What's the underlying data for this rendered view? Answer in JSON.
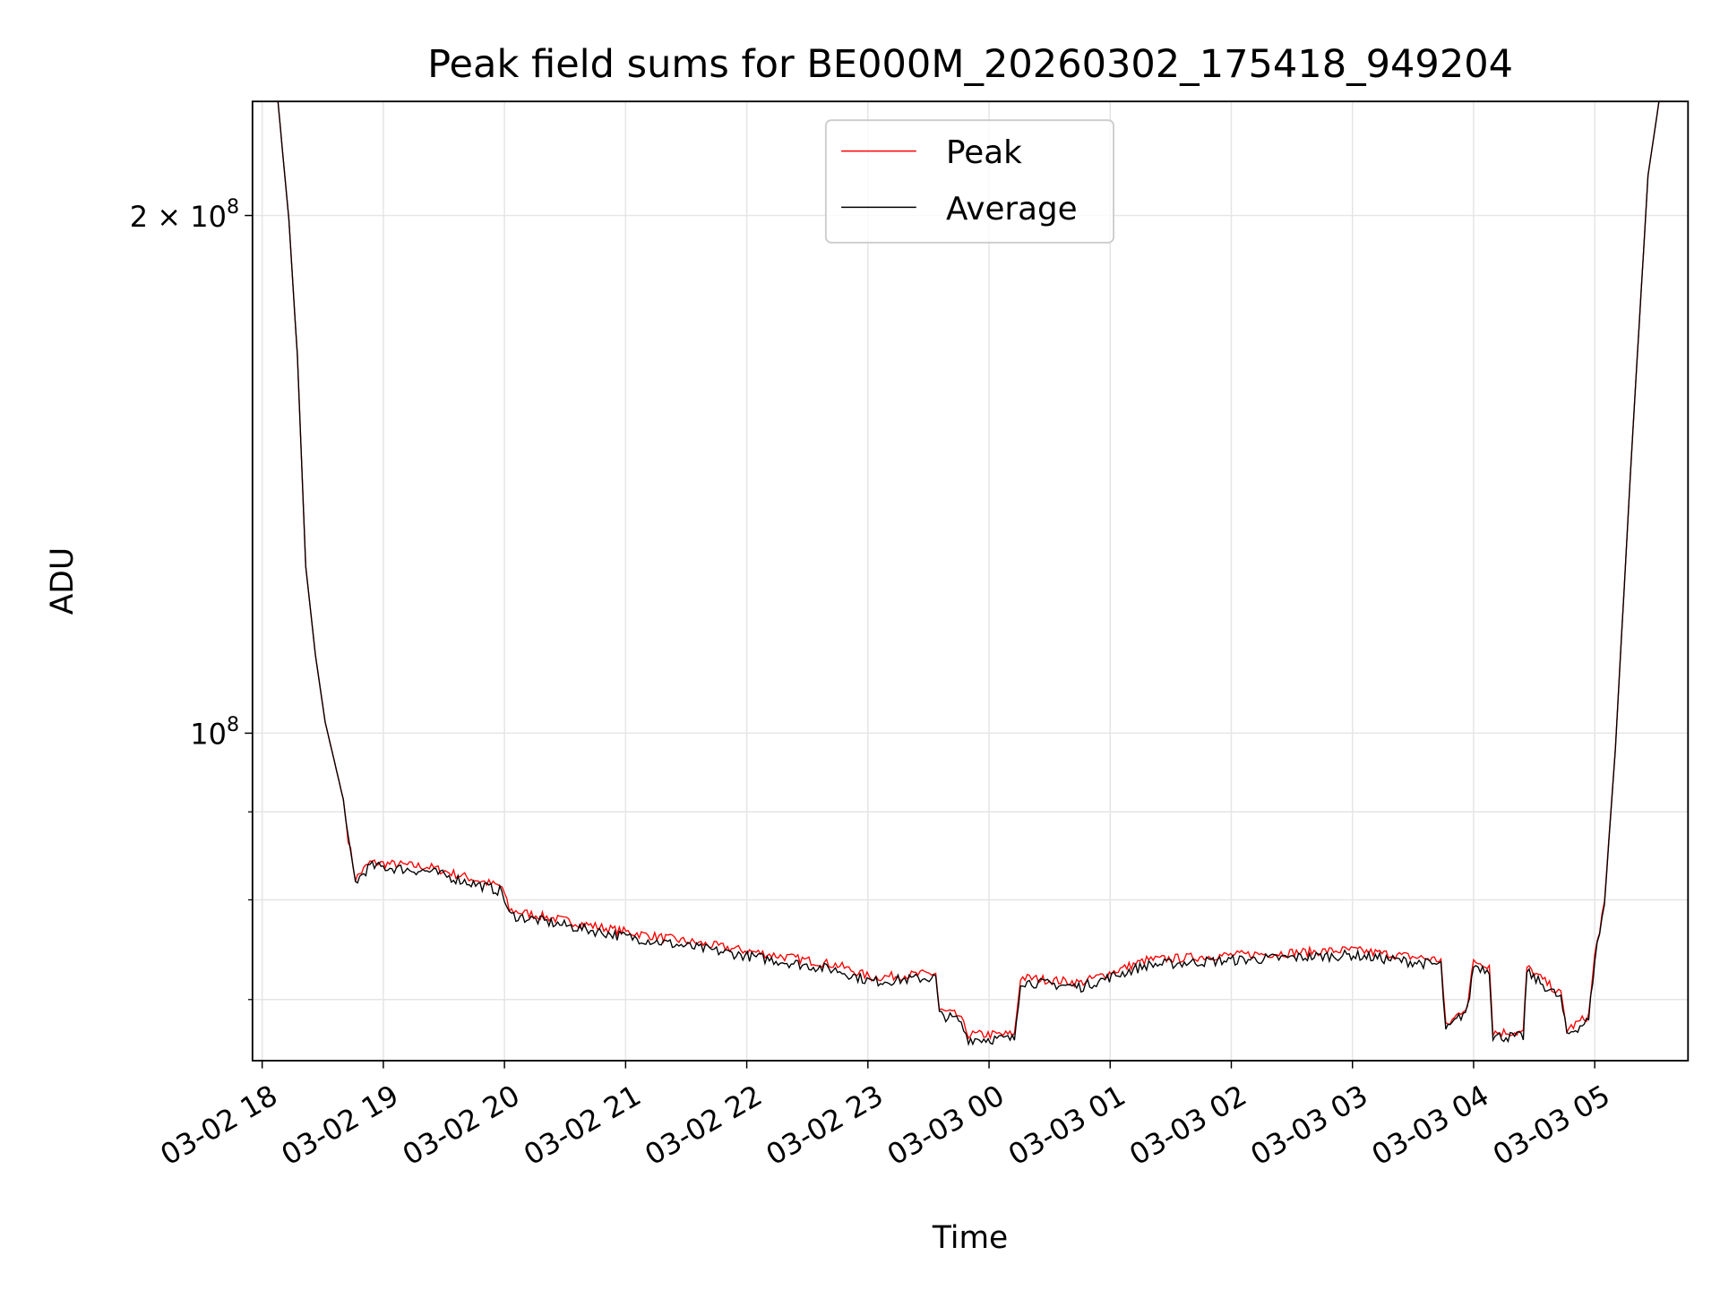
{
  "chart_data": {
    "type": "line",
    "title": "Peak field sums for BE000M_20260302_175418_949204",
    "xlabel": "Time",
    "ylabel": "ADU",
    "yscale": "log",
    "ylim": [
      64500000,
      233000000
    ],
    "xlim_hours_since_0302_1800": [
      -0.08,
      11.77
    ],
    "x_ticks": [
      "03-02 18",
      "03-02 19",
      "03-02 20",
      "03-02 21",
      "03-02 22",
      "03-02 23",
      "03-03 00",
      "03-03 01",
      "03-03 02",
      "03-03 03",
      "03-03 04",
      "03-03 05"
    ],
    "y_ticks": [
      {
        "value": 100000000,
        "label": "10",
        "exp": "8"
      },
      {
        "value": 200000000,
        "label": "2 × 10",
        "exp": "8"
      }
    ],
    "y_minor_ticks": [
      70000000,
      80000000,
      90000000
    ],
    "grid": true,
    "legend": {
      "placement": "upper-center",
      "entries": [
        "Peak",
        "Average"
      ]
    },
    "colors": {
      "Peak": "#ff0000",
      "Average": "#000000"
    },
    "x_hours": [
      0.13,
      0.22,
      0.29,
      0.36,
      0.44,
      0.52,
      0.67,
      0.71,
      0.77,
      0.89,
      1.38,
      1.98,
      2.04,
      2.93,
      3.75,
      4.75,
      5.03,
      5.56,
      5.59,
      5.75,
      5.83,
      6.21,
      6.26,
      6.76,
      7.3,
      7.85,
      8.99,
      9.73,
      9.77,
      9.95,
      10.0,
      10.13,
      10.16,
      10.41,
      10.44,
      10.72,
      10.77,
      10.95,
      11.0,
      11.08,
      11.17,
      11.31,
      11.44,
      11.53
    ],
    "series": [
      {
        "name": "Peak",
        "values_millions": [
          233,
          199,
          166,
          125,
          111,
          101.5,
          91.5,
          86.9,
          82.3,
          84.1,
          83.6,
          81.4,
          78.9,
          76.8,
          75.2,
          73.3,
          72.1,
          72.5,
          69.0,
          68.5,
          66.8,
          66.8,
          72.1,
          71.6,
          73.8,
          74.2,
          74.8,
          73.8,
          67.5,
          69.5,
          73.7,
          73.3,
          67.0,
          67.0,
          73.1,
          70.5,
          67.2,
          68.5,
          74.2,
          79.8,
          98,
          148,
          211,
          233
        ]
      },
      {
        "name": "Average",
        "values_millions": [
          233,
          199,
          166,
          125,
          111,
          101.5,
          91.5,
          86.6,
          81.9,
          83.7,
          83.1,
          80.9,
          78.4,
          76.3,
          74.7,
          72.8,
          71.7,
          72.1,
          68.6,
          68.1,
          66.4,
          66.4,
          71.7,
          71.2,
          73.3,
          73.7,
          74.3,
          73.3,
          67.1,
          69.1,
          73.3,
          72.8,
          66.6,
          66.6,
          72.6,
          70.1,
          66.8,
          68.1,
          73.9,
          79.5,
          97.8,
          148,
          211,
          233
        ]
      }
    ]
  }
}
